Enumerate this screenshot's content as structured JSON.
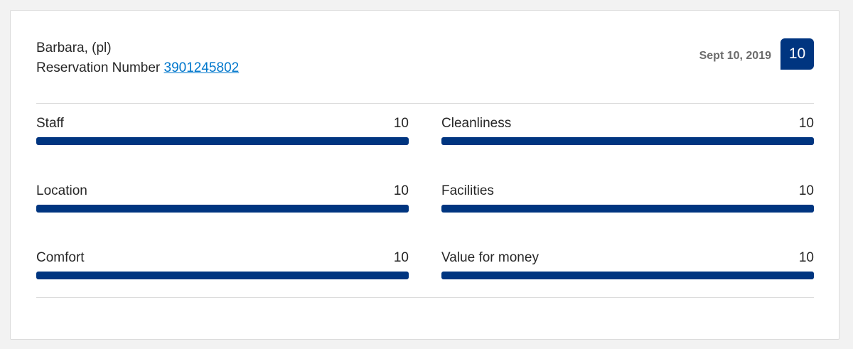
{
  "reviewer": {
    "name": "Barbara, (pl)",
    "reservation_label": "Reservation Number",
    "reservation_number": "3901245802"
  },
  "date": "Sept 10, 2019",
  "overall_score": 10,
  "scores": [
    {
      "label": "Staff",
      "value": 10
    },
    {
      "label": "Cleanliness",
      "value": 10
    },
    {
      "label": "Location",
      "value": 10
    },
    {
      "label": "Facilities",
      "value": 10
    },
    {
      "label": "Comfort",
      "value": 10
    },
    {
      "label": "Value for money",
      "value": 10
    }
  ]
}
